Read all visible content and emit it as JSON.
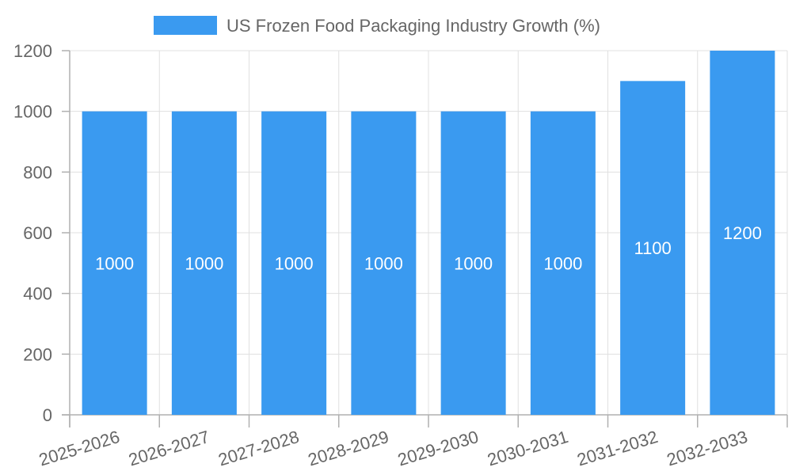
{
  "chart_data": {
    "type": "bar",
    "title": "",
    "xlabel": "",
    "ylabel": "",
    "categories": [
      "2025-2026",
      "2026-2027",
      "2027-2028",
      "2028-2029",
      "2029-2030",
      "2030-2031",
      "2031-2032",
      "2032-2033"
    ],
    "series": [
      {
        "name": "US Frozen Food Packaging Industry Growth (%)",
        "values": [
          1000,
          1000,
          1000,
          1000,
          1000,
          1000,
          1100,
          1200
        ],
        "color": "#3a9af0"
      }
    ],
    "ylim": [
      0,
      1200
    ],
    "yticks": [
      0,
      200,
      400,
      600,
      800,
      1000,
      1200
    ],
    "grid": true,
    "legend_position": "top-center",
    "data_labels": [
      "1000",
      "1000",
      "1000",
      "1000",
      "1000",
      "1000",
      "1100",
      "1200"
    ]
  }
}
